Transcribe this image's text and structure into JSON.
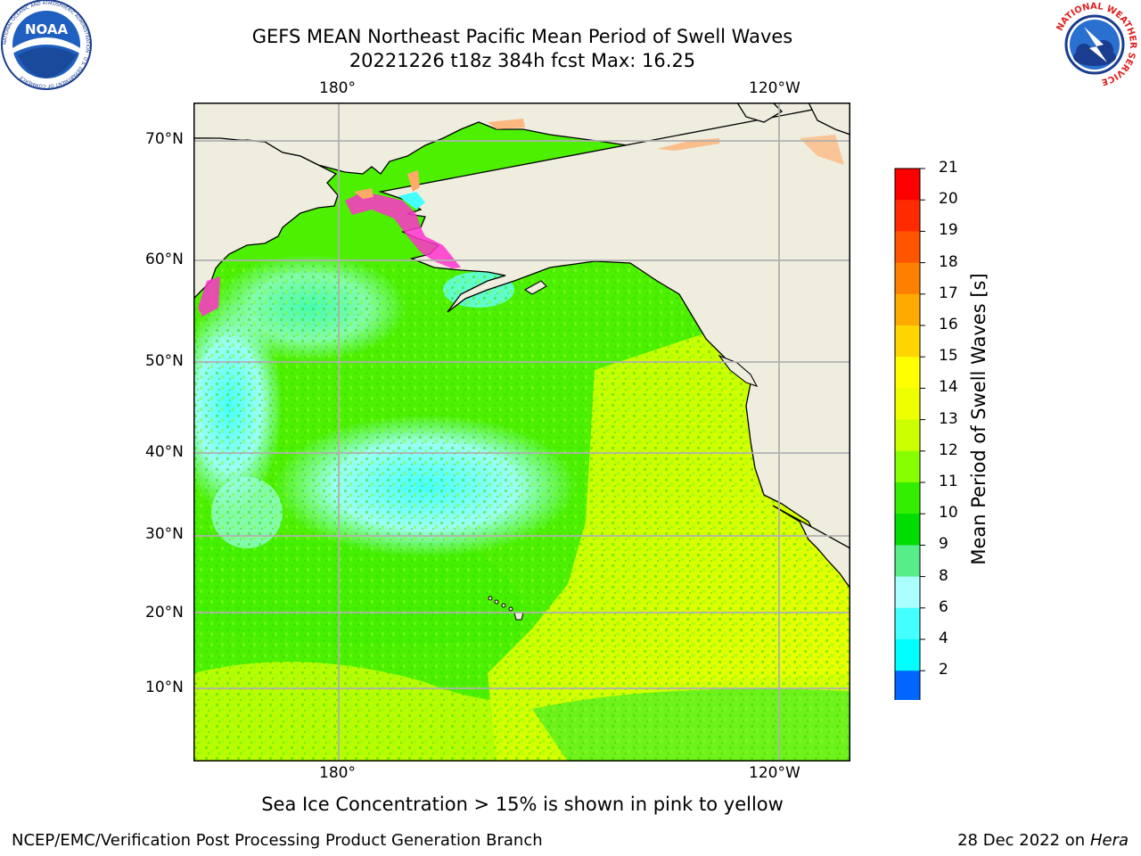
{
  "title_line1": "GEFS MEAN Northeast Pacific Mean Period of Swell Waves",
  "title_line2": "20221226 t18z 384h fcst   Max: 16.25",
  "lon_labels_top": [
    "180°",
    "120°W"
  ],
  "lon_labels_bottom": [
    "180°",
    "120°W"
  ],
  "lat_labels": [
    "70°N",
    "60°N",
    "50°N",
    "40°N",
    "30°N",
    "20°N",
    "10°N"
  ],
  "colorbar": {
    "title": "Mean Period of Swell Waves [s]",
    "ticks": [
      "21",
      "20",
      "19",
      "18",
      "17",
      "16",
      "15",
      "14",
      "13",
      "12",
      "11",
      "10",
      "9",
      "8",
      "6",
      "4",
      "2"
    ],
    "colors": [
      "#ff0000",
      "#ff2a00",
      "#ff5500",
      "#ff8000",
      "#ffaa00",
      "#ffd500",
      "#ffff00",
      "#eeff00",
      "#ccff00",
      "#88ff00",
      "#33ee00",
      "#00dd00",
      "#55ee88",
      "#aaffff",
      "#44ffff",
      "#00ffff",
      "#00d8ff",
      "#0066ff",
      "#0000ff"
    ],
    "extend_color": "#0000ff"
  },
  "note": "Sea Ice Concentration > 15% is shown in pink to yellow",
  "footer_left": "NCEP/EMC/Verification Post Processing Product Generation Branch",
  "footer_right_prefix": "28 Dec 2022 on",
  "footer_right_machine": "Hera",
  "logos": {
    "noaa": "NOAA",
    "noaa_ring": "NATIONAL OCEANIC AND ATMOSPHERIC ADMINISTRATION · U.S. DEPARTMENT OF COMMERCE",
    "nws_ring": "NATIONAL WEATHER SERVICE"
  },
  "map_colors": {
    "land": "#efedde",
    "grid": "#b0b0b0",
    "ocean_main": "#4cf000",
    "ocean_cyan": "#9cfff4",
    "ocean_deepcyan": "#44ffff",
    "ocean_yellow": "#e6ff00",
    "ocean_teal": "#55ee88",
    "ice_pink": "#ff33cc",
    "ice_orange": "#ffaa66"
  }
}
